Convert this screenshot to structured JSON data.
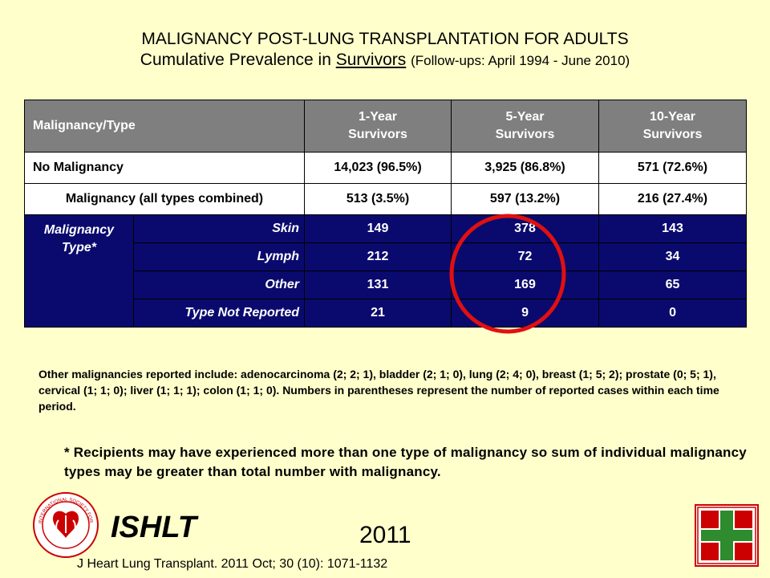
{
  "header": {
    "title": "MALIGNANCY POST-LUNG TRANSPLANTATION FOR ADULTS",
    "subtitle_prefix": "Cumulative Prevalence in ",
    "subtitle_underlined": "Survivors",
    "subtitle_suffix": "(Follow-ups: April 1994 - June 2010)"
  },
  "table": {
    "headers": [
      {
        "line1": "Malignancy/Type",
        "line2": ""
      },
      {
        "line1": "1-Year",
        "line2": "Survivors"
      },
      {
        "line1": "5-Year",
        "line2": "Survivors"
      },
      {
        "line1": "10-Year",
        "line2": "Survivors"
      }
    ],
    "summary_rows": [
      {
        "label": "No Malignancy",
        "values": [
          "14,023 (96.5%)",
          "3,925 (86.8%)",
          "571 (72.6%)"
        ]
      },
      {
        "label": "Malignancy (all types combined)",
        "values": [
          "513 (3.5%)",
          "597 (13.2%)",
          "216 (27.4%)"
        ]
      }
    ],
    "group_label_line1": "Malignancy",
    "group_label_line2": "Type*",
    "type_rows": [
      {
        "label": "Skin",
        "values": [
          "149",
          "378",
          "143"
        ]
      },
      {
        "label": "Lymph",
        "values": [
          "212",
          "72",
          "34"
        ]
      },
      {
        "label": "Other",
        "values": [
          "131",
          "169",
          "65"
        ]
      },
      {
        "label": "Type Not Reported",
        "values": [
          "21",
          "9",
          "0"
        ]
      }
    ]
  },
  "note": "Other malignancies reported include: adenocarcinoma (2; 2; 1), bladder (2; 1; 0), lung (2; 4; 0), breast (1; 5; 2); prostate (0; 5; 1), cervical (1; 1; 0); liver (1; 1; 1); colon (1; 1; 0).  Numbers in parentheses represent the number of reported cases within each time period.",
  "footnote": "* Recipients may have experienced more than one type of malignancy so sum of individual malignancy types may be greater than total number with malignancy.",
  "footer": {
    "org": "ISHLT",
    "year": "2011",
    "citation": "J Heart Lung Transplant. 2011 Oct; 30 (10): 1071-1132",
    "logo_text": "INTERNATIONAL SOCIETY FOR HEART & LUNG TRANSPLANTATION"
  },
  "colors": {
    "background": "#ffffcc",
    "header_gray": "#7f7f7f",
    "type_blue": "#0a0a6e",
    "highlight_red": "#e01010",
    "cross_green": "#2e8b2e"
  },
  "icons": {
    "logo": "ishlt-seal-icon",
    "cross": "green-cross-icon",
    "highlight": "red-circle-annotation"
  }
}
